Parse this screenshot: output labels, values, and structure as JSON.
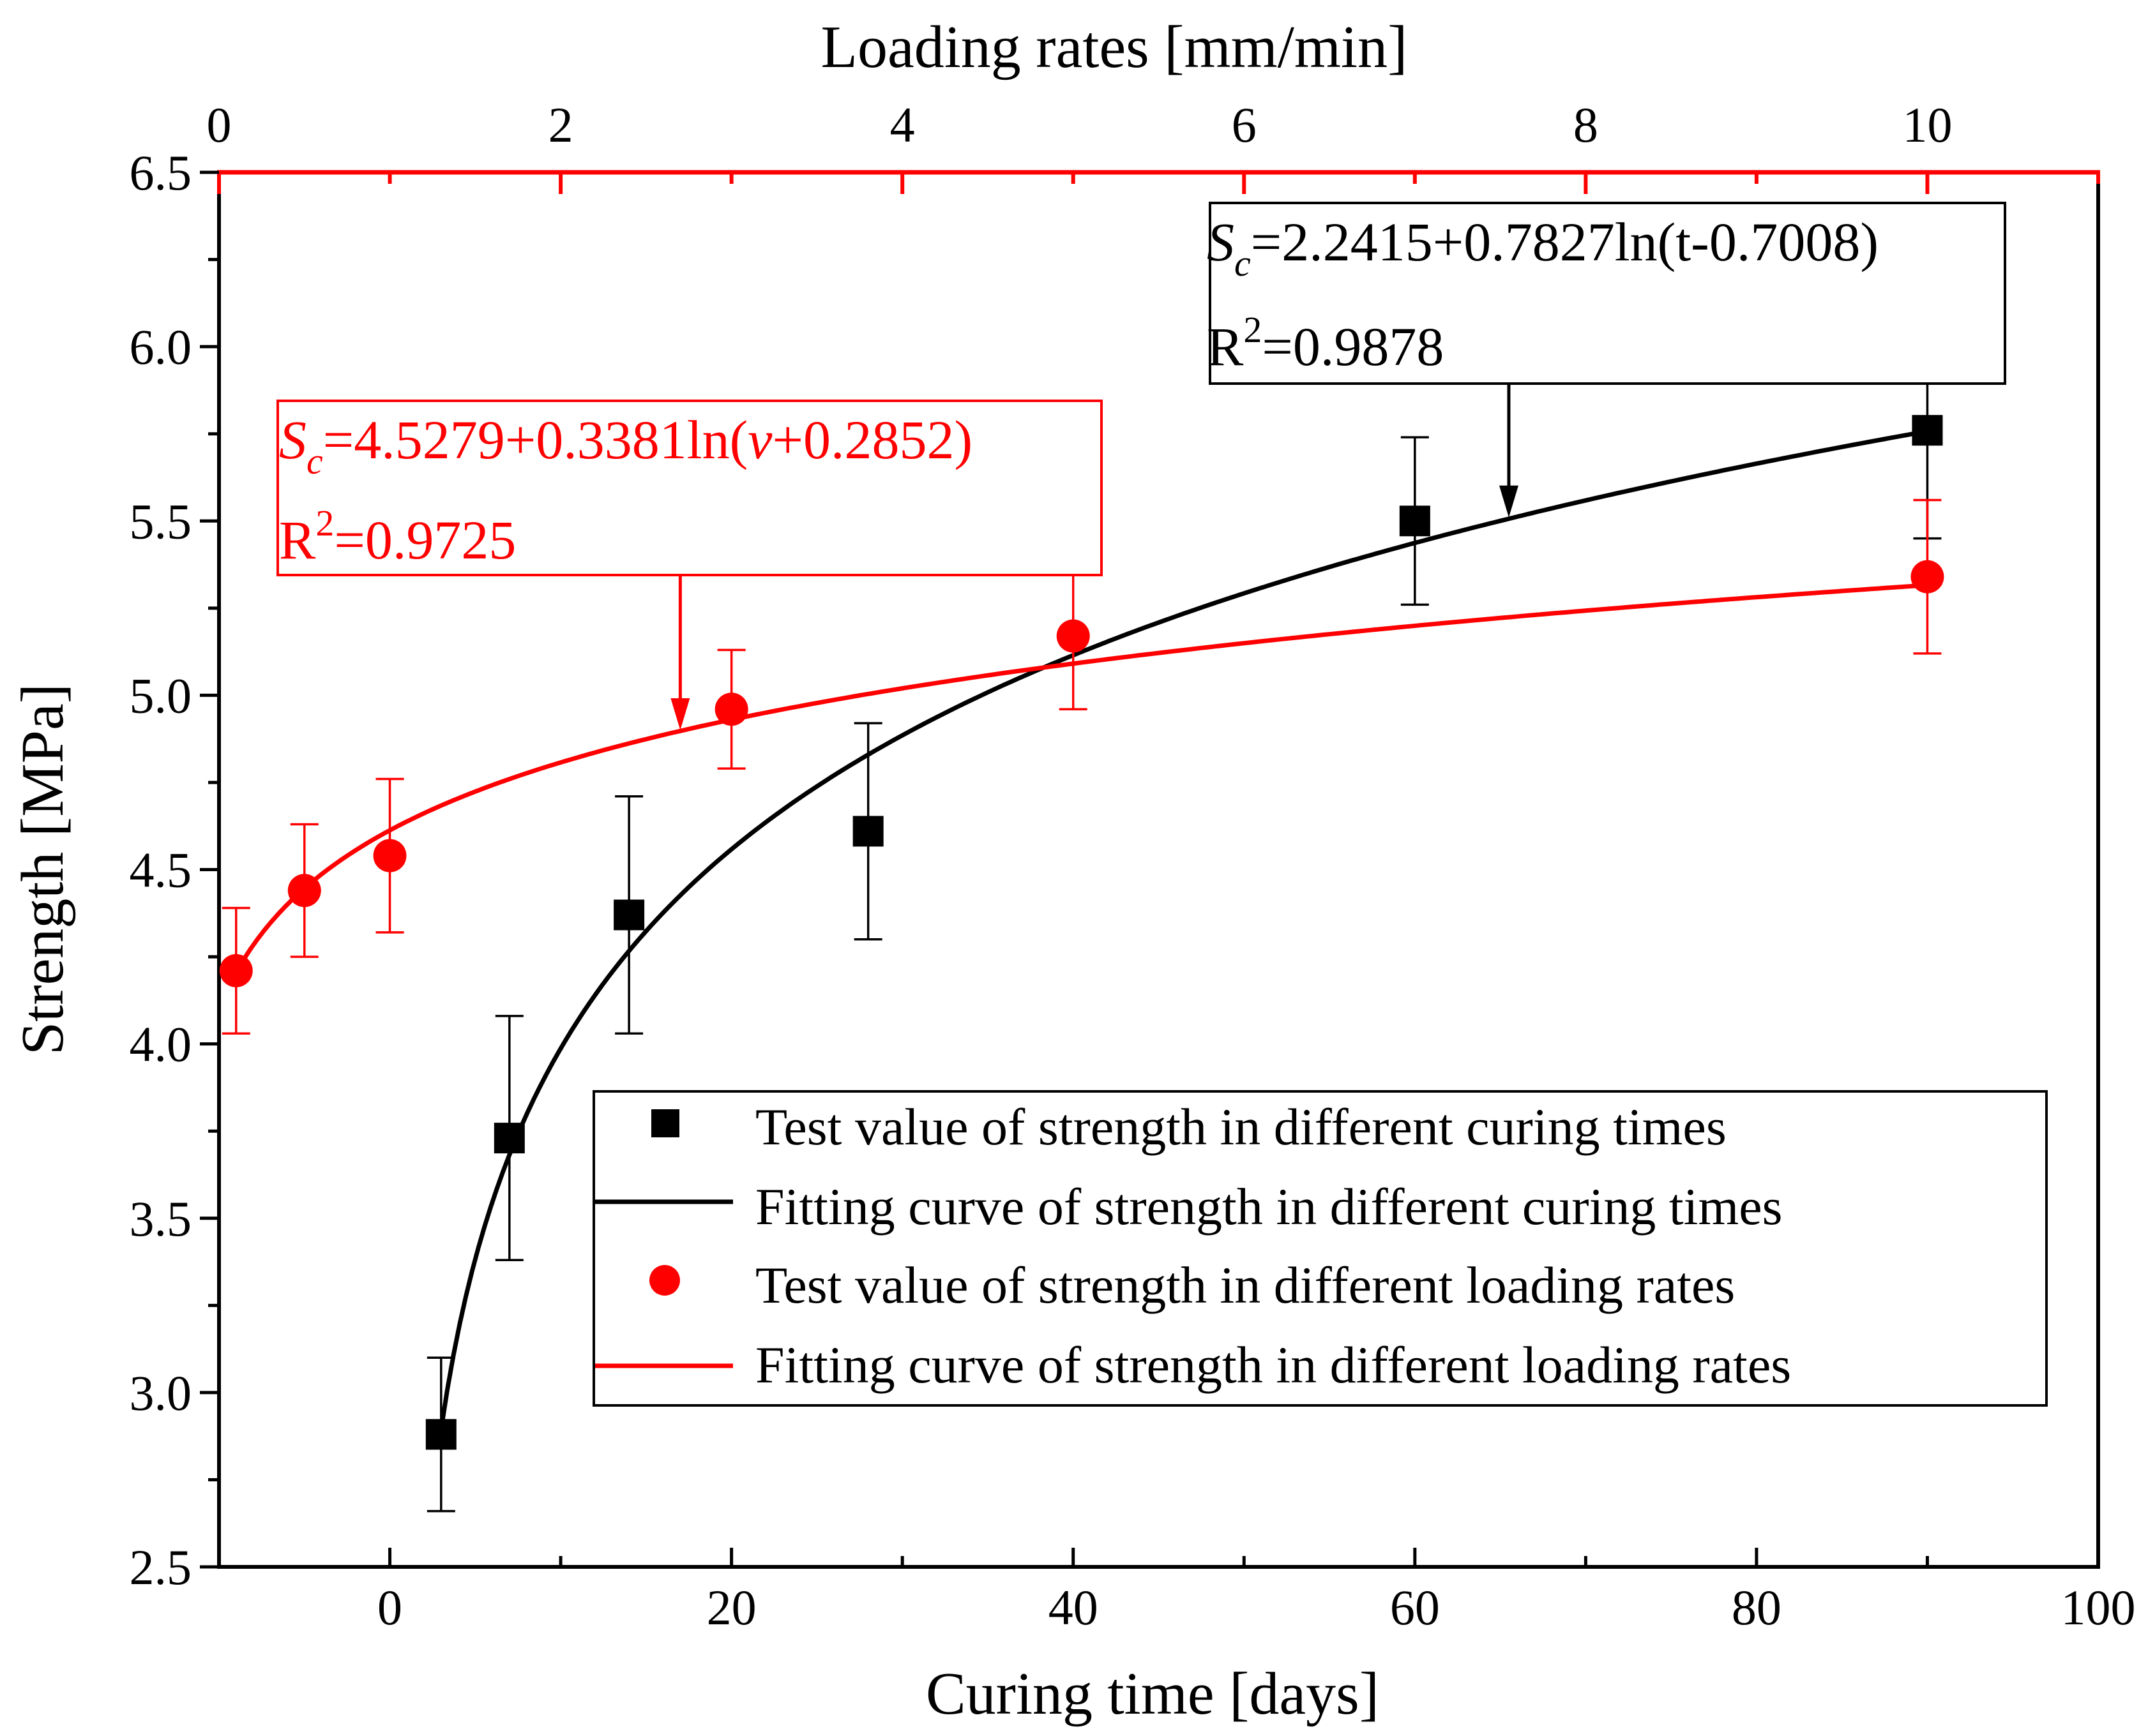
{
  "chart_data": {
    "type": "scatter",
    "title": "",
    "bottom_axis": {
      "label": "Curing time [days]",
      "range": [
        -10,
        100
      ],
      "ticks": [
        0,
        20,
        40,
        60,
        80,
        100
      ],
      "minor_step": 10
    },
    "top_axis": {
      "label": "Loading rates [mm/min]",
      "range": [
        0,
        11
      ],
      "ticks": [
        0,
        2,
        4,
        6,
        8,
        10
      ],
      "minor_step": 1,
      "color": "#ff0000"
    },
    "y_axis": {
      "label": "Strength [MPa]",
      "range": [
        2.5,
        6.5
      ],
      "ticks": [
        2.5,
        3.0,
        3.5,
        4.0,
        4.5,
        5.0,
        5.5,
        6.0,
        6.5
      ],
      "tick_labels": [
        "2.5",
        "3.0",
        "3.5",
        "4.0",
        "4.5",
        "5.0",
        "5.5",
        "6.0",
        "6.5"
      ],
      "minor_step": 0.25
    },
    "grid": false,
    "legend_position": "bottom-right",
    "series": [
      {
        "name": "Test value of strength in different curing times",
        "type": "scatter",
        "marker": "square",
        "color": "#000000",
        "axis": "bottom",
        "x": [
          3,
          7,
          14,
          28,
          60,
          90
        ],
        "y": [
          2.88,
          3.73,
          4.37,
          4.61,
          5.5,
          5.76
        ],
        "error": [
          0.22,
          0.35,
          0.34,
          0.31,
          0.24,
          0.31
        ]
      },
      {
        "name": "Fitting curve of strength in different curing times",
        "type": "line",
        "color": "#000000",
        "axis": "bottom",
        "fit": {
          "a": 2.2415,
          "b": 0.7827,
          "c": -0.7008,
          "x_start": 3.0,
          "x_end": 90
        }
      },
      {
        "name": "Test value of strength in different loading rates",
        "type": "scatter",
        "marker": "circle",
        "color": "#ff0000",
        "axis": "top",
        "x": [
          0.1,
          0.5,
          1,
          3,
          5,
          10
        ],
        "y": [
          4.21,
          4.44,
          4.54,
          4.96,
          5.17,
          5.34
        ],
        "error": [
          0.18,
          0.19,
          0.22,
          0.17,
          0.21,
          0.22
        ]
      },
      {
        "name": "Fitting curve of strength in different loading rates",
        "type": "line",
        "color": "#ff0000",
        "axis": "top",
        "fit": {
          "a": 4.5279,
          "b": 0.3381,
          "c": 0.2852,
          "x_start": 0.1,
          "x_end": 10
        }
      }
    ],
    "annotations": [
      {
        "id": "black",
        "color": "#000000",
        "prefix": "S",
        "sub": "c",
        "equation": "=2.2415+0.7827ln(t-0.7008)",
        "r2_base": "R",
        "r2_sup": "2",
        "r2_value": "=0.9878",
        "arrow_to": {
          "axis": "bottom",
          "x": 65.5,
          "y": 5.51
        }
      },
      {
        "id": "red",
        "color": "#ff0000",
        "prefix": "S",
        "sub": "c",
        "eq_part1": "=4.5279+0.3381ln(",
        "eq_var": "v",
        "eq_part2": "+0.2852)",
        "r2_base": "R",
        "r2_sup": "2",
        "r2_value": "=0.9725",
        "arrow_to": {
          "axis": "bottom",
          "x": 17,
          "y": 4.9
        }
      }
    ]
  }
}
